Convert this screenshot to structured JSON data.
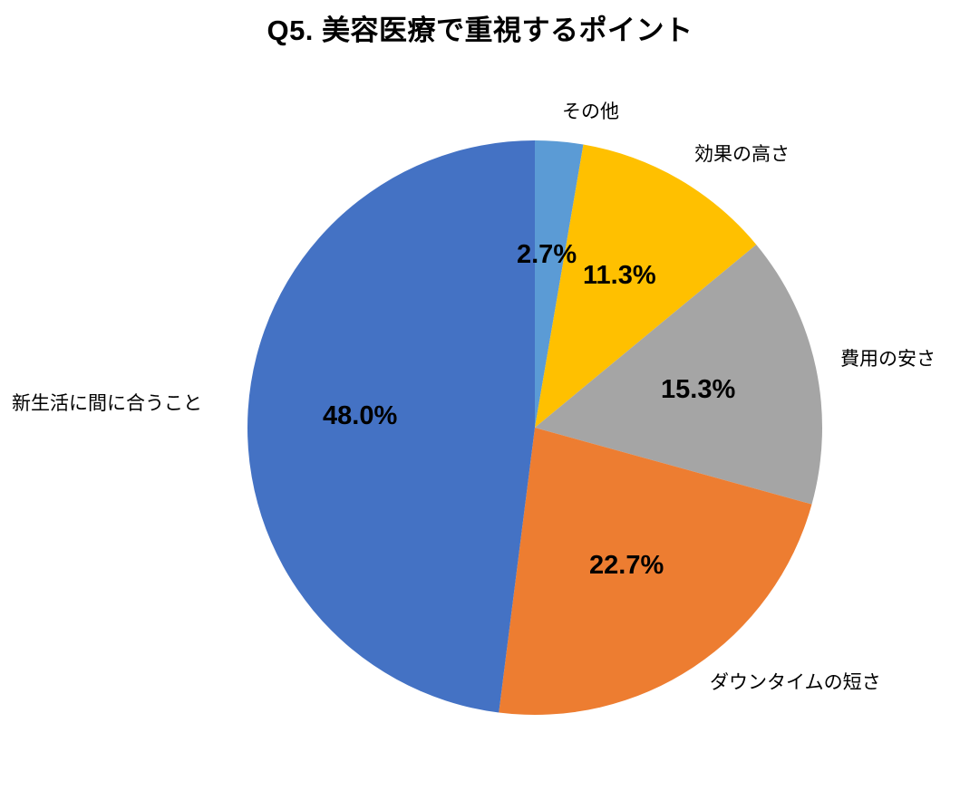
{
  "title": "Q5. 美容医療で重視するポイント",
  "chart_data": {
    "type": "pie",
    "title": "Q5. 美容医療で重視するポイント",
    "start_angle_deg": 0,
    "direction": "clockwise",
    "legend": "none",
    "background_color": "#FFFFFF",
    "categories": [
      "その他",
      "効果の高さ",
      "費用の安さ",
      "ダウンタイムの短さ",
      "新生活に間に合うこと"
    ],
    "values": [
      2.7,
      11.3,
      15.3,
      22.7,
      48.0
    ],
    "slices": [
      {
        "label": "その他",
        "value": 2.7,
        "percent_label": "2.7%",
        "color": "#5B9BD5"
      },
      {
        "label": "効果の高さ",
        "value": 11.3,
        "percent_label": "11.3%",
        "color": "#FFC000"
      },
      {
        "label": "費用の安さ",
        "value": 15.3,
        "percent_label": "15.3%",
        "color": "#A5A5A5"
      },
      {
        "label": "ダウンタイムの短さ",
        "value": 22.7,
        "percent_label": "22.7%",
        "color": "#ED7D31"
      },
      {
        "label": "新生活に間に合うこと",
        "value": 48.0,
        "percent_label": "48.0%",
        "color": "#4472C4"
      }
    ]
  }
}
